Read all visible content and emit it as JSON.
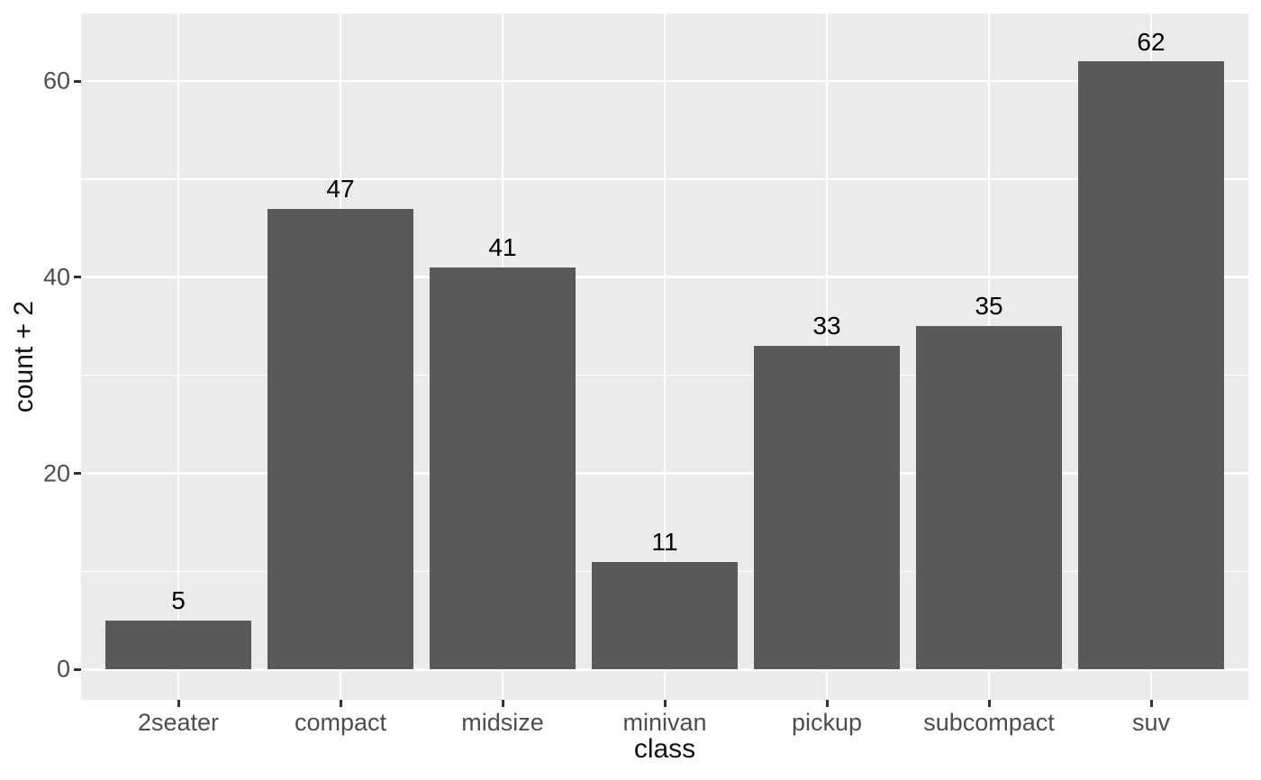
{
  "chart_data": {
    "type": "bar",
    "title": "",
    "xlabel": "class",
    "ylabel": "count + 2",
    "categories": [
      "2seater",
      "compact",
      "midsize",
      "minivan",
      "pickup",
      "subcompact",
      "suv"
    ],
    "values": [
      5,
      47,
      41,
      11,
      33,
      35,
      62
    ],
    "bar_labels": [
      "5",
      "47",
      "41",
      "11",
      "33",
      "35",
      "62"
    ],
    "bar_label_y_offset": 2,
    "yticks": [
      0,
      20,
      40,
      60
    ],
    "ytick_labels": [
      "0",
      "20",
      "40",
      "60"
    ],
    "minor_yticks": [
      10,
      30,
      50
    ],
    "ylim": [
      -3.1,
      66.9
    ],
    "xlim": [
      0.4,
      7.6
    ],
    "bar_width_units": 0.9,
    "grid": "major-and-minor, white on grey panel",
    "legend": "none",
    "colors": {
      "bar_fill": "#595959",
      "panel_background": "#EBEBEB",
      "gridline_major": "#FFFFFF",
      "gridline_minor": "#FFFFFF",
      "axis_tick_text": "#4D4D4D",
      "tick_mark": "#333333",
      "axis_title_text": "#111111",
      "bar_label_text": "#000000",
      "plot_background": "#FFFFFF"
    }
  }
}
